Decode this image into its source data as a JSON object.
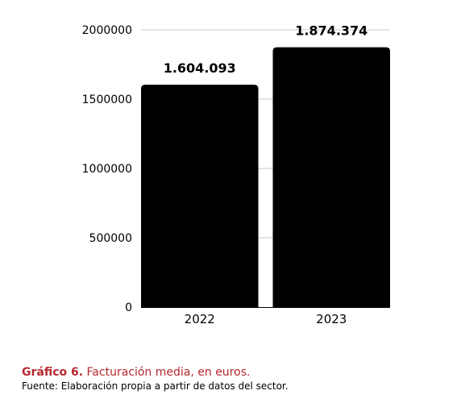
{
  "chart_data": {
    "type": "bar",
    "categories": [
      "2022",
      "2023"
    ],
    "values": [
      1604093,
      1874374
    ],
    "data_labels": [
      "1.604.093",
      "1.874.374"
    ],
    "y_ticks": [
      0,
      500000,
      1000000,
      1500000,
      2000000
    ],
    "y_tick_labels": [
      "0",
      "500000",
      "1000000",
      "1500000",
      "2000000"
    ],
    "ylim": [
      0,
      2000000
    ],
    "grid": true,
    "bar_color": "#000000",
    "title": "",
    "xlabel": "",
    "ylabel": ""
  },
  "caption": {
    "number": "Gráfico 6.",
    "text": "Facturación media, en euros.",
    "source": "Fuente: Elaboración propia a partir de datos del sector.",
    "color": "#b5272f"
  }
}
